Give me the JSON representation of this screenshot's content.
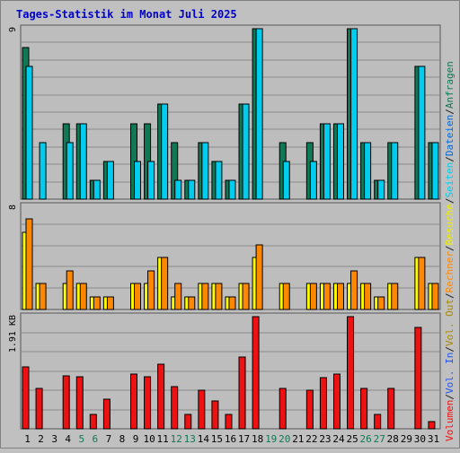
{
  "chart_data": {
    "type": "bar",
    "title": "Tages-Statistik im Monat Juli 2025",
    "categories": [
      "1",
      "2",
      "3",
      "4",
      "5",
      "6",
      "7",
      "8",
      "9",
      "10",
      "11",
      "12",
      "13",
      "14",
      "15",
      "16",
      "17",
      "18",
      "19",
      "20",
      "21",
      "22",
      "23",
      "24",
      "25",
      "26",
      "27",
      "28",
      "29",
      "30",
      "31"
    ],
    "weekend_days": [
      "5",
      "6",
      "12",
      "13",
      "19",
      "20",
      "26",
      "27"
    ],
    "panels": [
      {
        "key": "top",
        "ymax": 9,
        "ytick_label": "9",
        "series": [
          {
            "name": "Anfragen",
            "color": "#117755",
            "values": [
              8,
              0,
              0,
              4,
              4,
              1,
              2,
              0,
              4,
              4,
              5,
              3,
              1,
              3,
              2,
              1,
              5,
              9,
              0,
              3,
              0,
              3,
              4,
              4,
              9,
              3,
              1,
              3,
              0,
              7,
              3
            ]
          },
          {
            "name": "Dateien",
            "color": "#00ccee",
            "values": [
              7,
              3,
              0,
              3,
              4,
              1,
              2,
              0,
              2,
              2,
              5,
              1,
              1,
              3,
              2,
              1,
              5,
              9,
              0,
              2,
              0,
              2,
              4,
              4,
              9,
              3,
              1,
              3,
              0,
              7,
              3
            ]
          },
          {
            "name": "Seiten",
            "color": "#00ffff",
            "values": [
              0,
              0,
              0,
              0,
              0,
              0,
              0,
              0,
              0,
              0,
              0,
              0,
              0,
              0,
              0,
              0,
              0,
              0,
              0,
              0,
              0,
              0,
              0,
              0,
              0,
              0,
              0,
              0,
              0,
              0,
              0
            ]
          }
        ]
      },
      {
        "key": "middle",
        "ymax": 8,
        "ytick_label": "8",
        "series": [
          {
            "name": "Besuche",
            "color": "#ffff00",
            "values": [
              6,
              2,
              0,
              2,
              2,
              1,
              1,
              0,
              2,
              2,
              4,
              1,
              1,
              2,
              2,
              1,
              2,
              4,
              0,
              2,
              0,
              2,
              2,
              2,
              2,
              2,
              1,
              2,
              0,
              4,
              2
            ]
          },
          {
            "name": "Rechner",
            "color": "#ff8800",
            "values": [
              7,
              2,
              0,
              3,
              2,
              1,
              1,
              0,
              2,
              3,
              4,
              2,
              1,
              2,
              2,
              1,
              2,
              5,
              0,
              2,
              0,
              2,
              2,
              2,
              3,
              2,
              1,
              2,
              0,
              4,
              2
            ]
          }
        ]
      },
      {
        "key": "bottom",
        "ymax": 1.91,
        "ytick_label": "1.91 KB",
        "series": [
          {
            "name": "Volumen",
            "color": "#ee1111",
            "values": [
              1.05,
              0.68,
              0,
              0.9,
              0.88,
              0.25,
              0.5,
              0,
              0.93,
              0.88,
              1.1,
              0.72,
              0.25,
              0.65,
              0.47,
              0.25,
              1.23,
              1.91,
              0,
              0.68,
              0,
              0.66,
              0.87,
              0.93,
              1.91,
              0.68,
              0.25,
              0.68,
              0,
              1.72,
              0.12
            ]
          },
          {
            "name": "Vol. In",
            "color": "#3366ff",
            "values": []
          },
          {
            "name": "Vol. Out",
            "color": "#ddaa00",
            "values": []
          }
        ]
      }
    ],
    "legend_right": [
      {
        "label": "Anfragen",
        "color": "#117755"
      },
      {
        "label": "/",
        "color": "#1a1a1a"
      },
      {
        "label": "Dateien",
        "color": "#0066dd"
      },
      {
        "label": "/",
        "color": "#1a1a1a"
      },
      {
        "label": "Seiten",
        "color": "#00ccee"
      },
      {
        "label": "/",
        "color": "#1a1a1a"
      },
      {
        "label": "Besuche",
        "color": "#eeee00"
      },
      {
        "label": "/",
        "color": "#1a1a1a"
      },
      {
        "label": "Rechner",
        "color": "#ff8800"
      },
      {
        "label": "/",
        "color": "#1a1a1a"
      },
      {
        "label": "Vol. Out",
        "color": "#aa8800"
      },
      {
        "label": "/",
        "color": "#1a1a1a"
      },
      {
        "label": "Vol. In",
        "color": "#2255ee"
      },
      {
        "label": "/",
        "color": "#1a1a1a"
      },
      {
        "label": "Volumen",
        "color": "#ee1111"
      }
    ],
    "colors": {
      "background": "#c0c0c0",
      "plot_bg": "#bdbdbd",
      "grid": "#8c8c8c",
      "title": "#0000cc",
      "weekday_label": "#000000",
      "weekend_label": "#117755"
    }
  }
}
